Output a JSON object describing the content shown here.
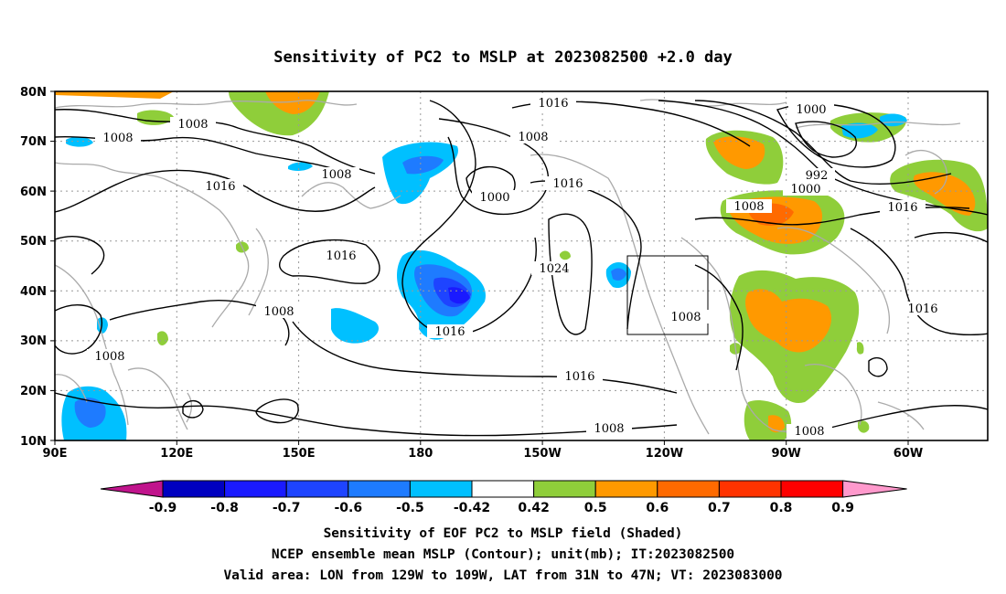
{
  "title": "Sensitivity of PC2 to MSLP at 2023082500 +2.0 day",
  "lat_ticks": [
    "80N",
    "70N",
    "60N",
    "50N",
    "40N",
    "30N",
    "20N",
    "10N"
  ],
  "lon_ticks": [
    "90E",
    "120E",
    "150E",
    "180",
    "150W",
    "120W",
    "90W",
    "60W"
  ],
  "contour_labels": [
    "1008",
    "1008",
    "1008",
    "1016",
    "1016",
    "1008",
    "1000",
    "1016",
    "1016",
    "1000",
    "992",
    "1000",
    "1008",
    "1016",
    "1024",
    "1016",
    "1008",
    "1008",
    "1016",
    "1016",
    "1008",
    "1008",
    "1008"
  ],
  "colorbar": {
    "labels": [
      "-0.9",
      "-0.8",
      "-0.7",
      "-0.6",
      "-0.5",
      "-0.42",
      "0.42",
      "0.5",
      "0.6",
      "0.7",
      "0.8",
      "0.9"
    ],
    "colors": [
      "#0000c0",
      "#1a1aff",
      "#1e44ff",
      "#1e7bff",
      "#00c0ff",
      "#ffffff",
      "#8fce3a",
      "#ff9900",
      "#ff6a00",
      "#ff3300",
      "#ff0000"
    ],
    "low_color": "#c0148c",
    "high_color": "#ff99cc"
  },
  "notes": [
    "Sensitivity of EOF PC2 to MSLP field (Shaded)",
    "NCEP ensemble mean MSLP (Contour); unit(mb); IT:2023082500",
    "Valid area: LON from 129W to 109W, LAT from 31N to 47N; VT: 2023083000"
  ],
  "valid_area": {
    "lon": [
      -129,
      -109
    ],
    "lat": [
      31,
      47
    ]
  }
}
